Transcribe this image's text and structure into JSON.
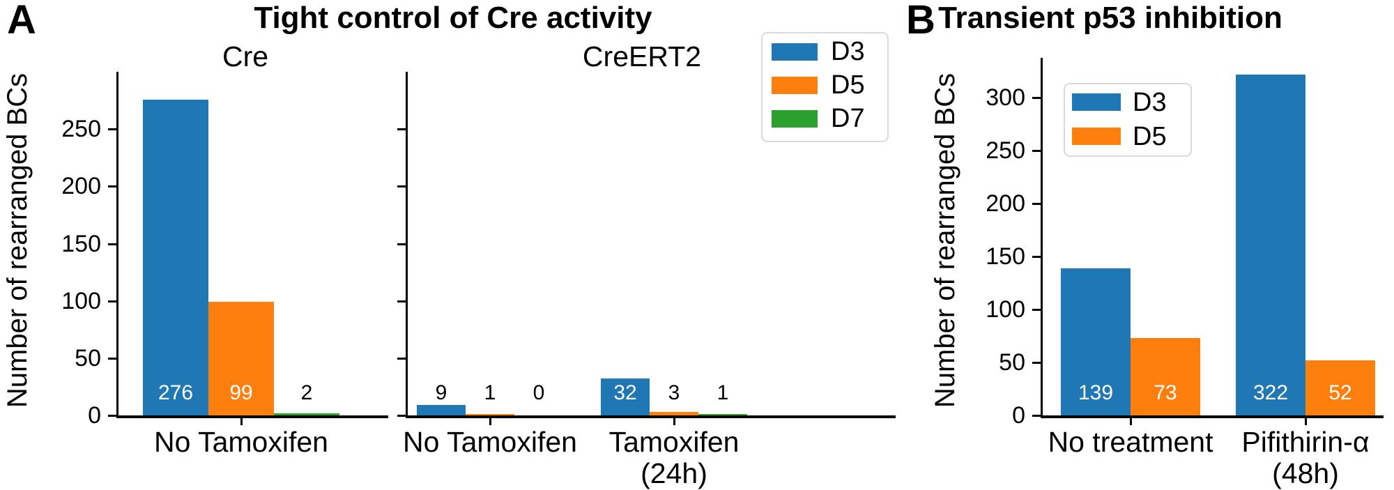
{
  "chart_data": [
    {
      "type": "bar",
      "panel": "A",
      "title": "Tight control of Cre activity",
      "ylabel": "Number of rearranged BCs",
      "ylim": [
        0,
        297
      ],
      "yticks": [
        0,
        50,
        100,
        150,
        200,
        250
      ],
      "grid": false,
      "legend": {
        "position": "upper right",
        "entries": [
          "D3",
          "D5",
          "D7"
        ]
      },
      "series_colors": {
        "D3": "#1f77b4",
        "D5": "#ff7f0e",
        "D7": "#2ca02c"
      },
      "subplots": [
        {
          "title": "Cre",
          "categories": [
            "No Tamoxifen"
          ],
          "category_lines": [
            [
              "No Tamoxifen"
            ]
          ],
          "series": [
            {
              "name": "D3",
              "values": [
                276
              ]
            },
            {
              "name": "D5",
              "values": [
                99
              ]
            },
            {
              "name": "D7",
              "values": [
                2
              ]
            }
          ]
        },
        {
          "title": "CreERT2",
          "categories": [
            "No Tamoxifen",
            "Tamoxifen (24h)"
          ],
          "category_lines": [
            [
              "No Tamoxifen"
            ],
            [
              "Tamoxifen",
              "(24h)"
            ]
          ],
          "series": [
            {
              "name": "D3",
              "values": [
                9,
                32
              ]
            },
            {
              "name": "D5",
              "values": [
                1,
                3
              ]
            },
            {
              "name": "D7",
              "values": [
                0,
                1
              ]
            }
          ]
        }
      ]
    },
    {
      "type": "bar",
      "panel": "B",
      "title": "Transient p53 inhibition",
      "ylabel": "Number of rearranged BCs",
      "ylim": [
        0,
        339
      ],
      "yticks": [
        0,
        50,
        100,
        150,
        200,
        250,
        300
      ],
      "grid": false,
      "legend": {
        "position": "upper left",
        "entries": [
          "D3",
          "D5"
        ]
      },
      "series_colors": {
        "D3": "#1f77b4",
        "D5": "#ff7f0e"
      },
      "subplots": [
        {
          "title": null,
          "categories": [
            "No treatment",
            "Pifithirin-α (48h)"
          ],
          "category_lines": [
            [
              "No treatment"
            ],
            [
              "Pifithirin-α",
              "(48h)"
            ]
          ],
          "series": [
            {
              "name": "D3",
              "values": [
                139,
                322
              ]
            },
            {
              "name": "D5",
              "values": [
                73,
                52
              ]
            }
          ]
        }
      ]
    }
  ]
}
